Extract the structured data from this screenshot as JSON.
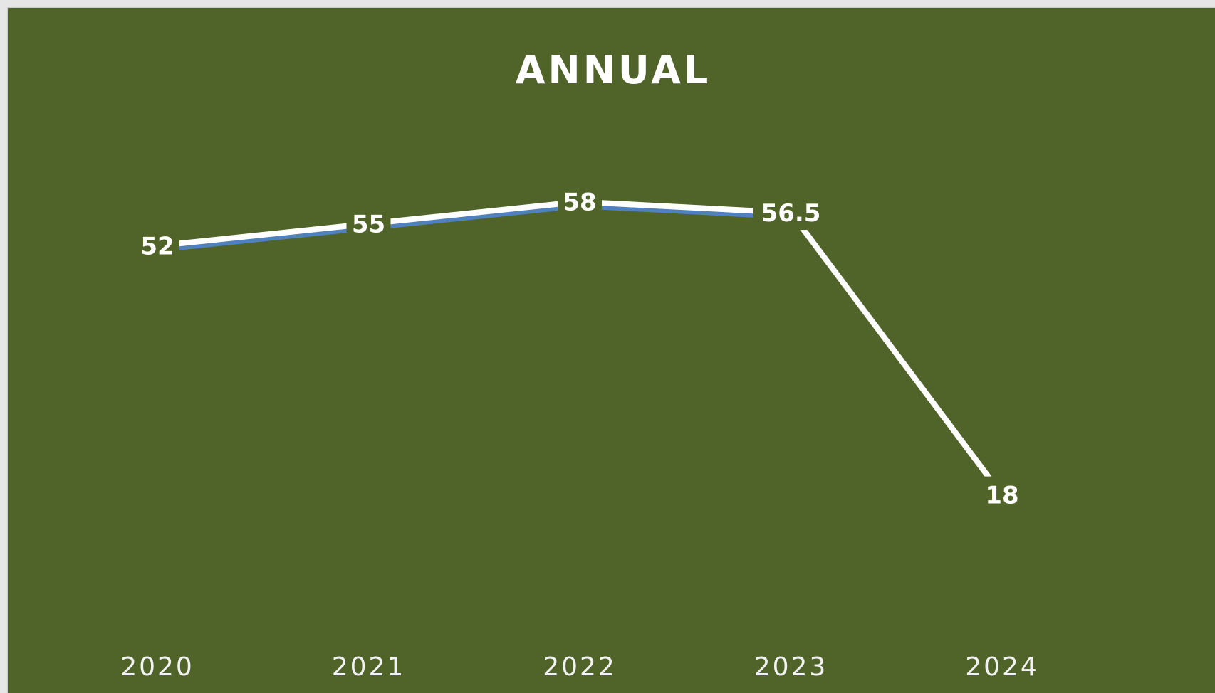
{
  "chart_data": {
    "type": "line",
    "title": "ANNUAL",
    "categories": [
      "2020",
      "2021",
      "2022",
      "2023",
      "2024"
    ],
    "series": [
      {
        "values": [
          52,
          55,
          58,
          56.5,
          18
        ]
      }
    ],
    "data_labels": [
      "52",
      "55",
      "58",
      "56.5",
      "18"
    ],
    "xlabel": "",
    "ylabel": "",
    "ylim": [
      0,
      70
    ],
    "grid": false,
    "drop_lines": true,
    "legend": "none"
  },
  "colors": {
    "background": "#506328",
    "line": "#ffffff",
    "line_shadow": "#4f81bd",
    "text": "#ffffff"
  }
}
